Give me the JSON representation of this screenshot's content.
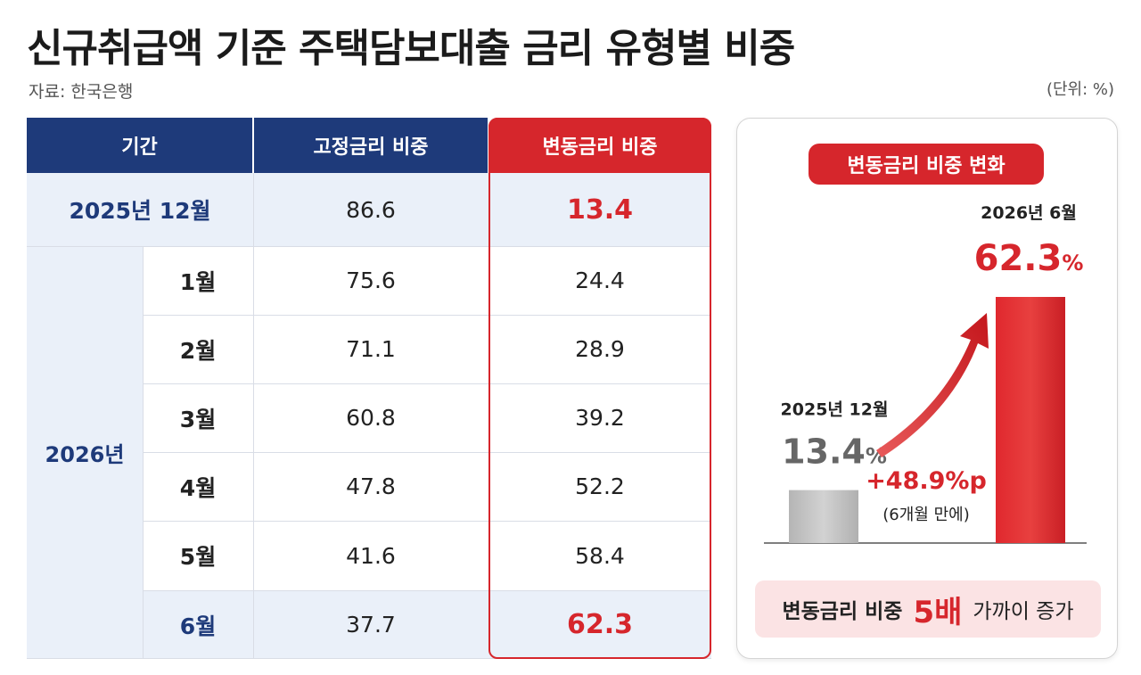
{
  "title": "신규취급액 기준 주택담보대출 금리 유형별 비중",
  "source": "자료: 한국은행",
  "unit": "(단위: %)",
  "table": {
    "headers": [
      "기간",
      "고정금리 비중",
      "변동금리 비중"
    ],
    "first_row": {
      "period": "2025년 12월",
      "fixed": "86.6",
      "variable": "13.4"
    },
    "year_label": "2026년",
    "rows": [
      {
        "month": "1월",
        "fixed": "75.6",
        "variable": "24.4"
      },
      {
        "month": "2월",
        "fixed": "71.1",
        "variable": "28.9"
      },
      {
        "month": "3월",
        "fixed": "60.8",
        "variable": "39.2"
      },
      {
        "month": "4월",
        "fixed": "47.8",
        "variable": "52.2"
      },
      {
        "month": "5월",
        "fixed": "41.6",
        "variable": "58.4"
      },
      {
        "month": "6월",
        "fixed": "37.7",
        "variable": "62.3"
      }
    ]
  },
  "chart": {
    "badge": "변동금리 비중 변화",
    "increase_label": "+48.9%p",
    "increase_note": "(6개월 만에)",
    "summary_prefix": "변동금리 비중",
    "summary_highlight": "5배",
    "summary_suffix": "가까이 증가"
  },
  "chart_data": {
    "type": "bar",
    "categories": [
      "2025년 12월",
      "2026년 6월"
    ],
    "values": [
      13.4,
      62.3
    ],
    "value_labels": [
      "13.4",
      "62.3"
    ],
    "value_unit": "%",
    "title": "변동금리 비중 변화",
    "ylim": [
      0,
      70
    ],
    "colors": [
      "#c4c4c4",
      "#d6262c"
    ]
  },
  "colors": {
    "navy": "#1e3a7a",
    "red": "#d6262c",
    "light_blue": "#eaf0f9",
    "pink": "#fbe3e4"
  }
}
